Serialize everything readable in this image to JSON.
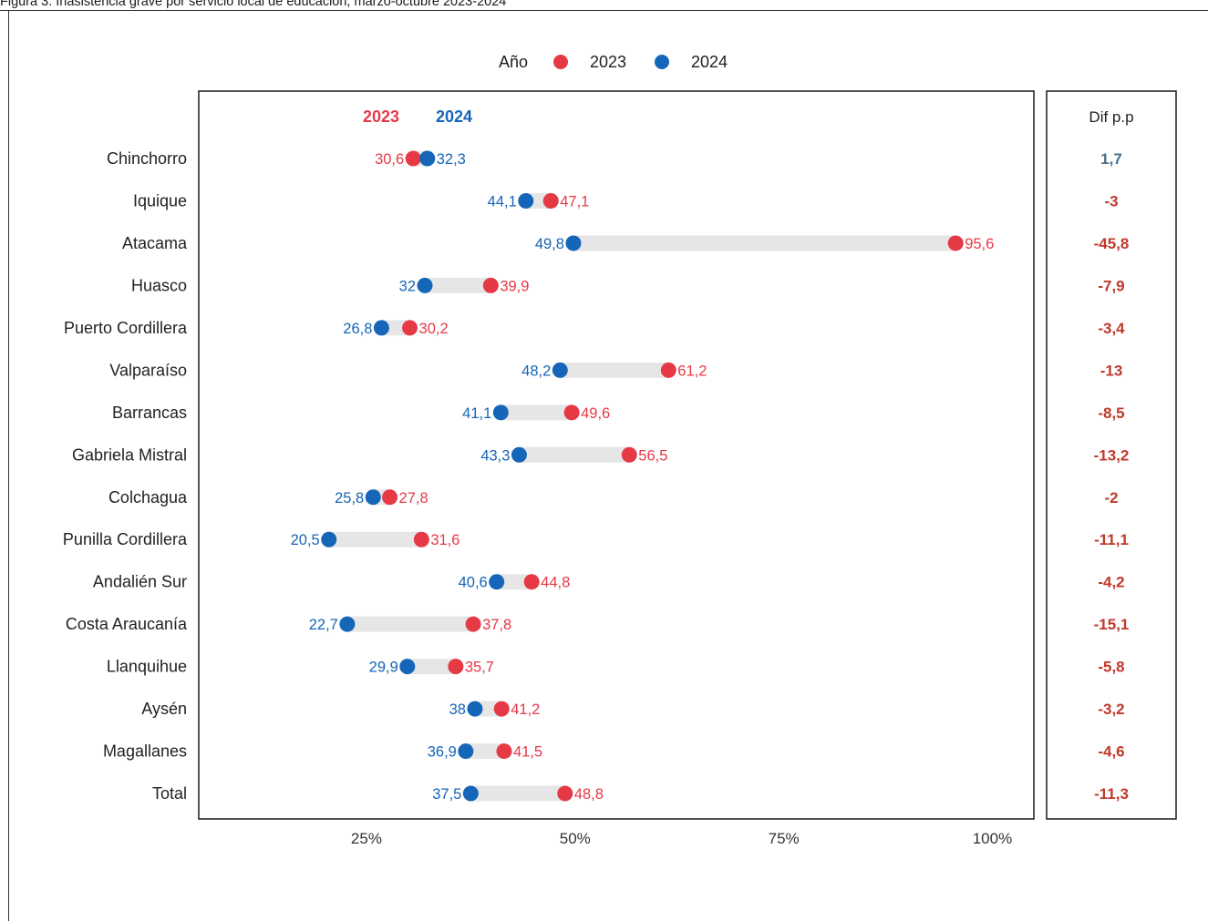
{
  "page": {
    "title": "Figura 3. Inasistencia grave por servicio local de educación, marzo-octubre 2023-2024"
  },
  "legend": {
    "title": "Año",
    "items": [
      {
        "label": "2023",
        "color": "#e63946"
      },
      {
        "label": "2024",
        "color": "#1565b8"
      }
    ]
  },
  "header_labels": {
    "y2023": "2023",
    "y2024": "2024"
  },
  "diff_panel": {
    "header": "Dif p.p",
    "positive_color": "#4a6f8a",
    "negative_color": "#c0392b"
  },
  "colors": {
    "c2023": "#e63946",
    "c2024": "#1565b8",
    "bar": "#e6e6e6"
  },
  "chart_data": {
    "type": "dumbbell",
    "categories": [
      "Chinchorro",
      "Iquique",
      "Atacama",
      "Huasco",
      "Puerto Cordillera",
      "Valparaíso",
      "Barrancas",
      "Gabriela Mistral",
      "Colchagua",
      "Punilla Cordillera",
      "Andalién Sur",
      "Costa Araucanía",
      "Llanquihue",
      "Aysén",
      "Magallanes",
      "Total"
    ],
    "series": [
      {
        "name": "2023",
        "values": [
          30.6,
          47.1,
          95.6,
          39.9,
          30.2,
          61.2,
          49.6,
          56.5,
          27.8,
          31.6,
          44.8,
          37.8,
          35.7,
          41.2,
          41.5,
          48.8
        ],
        "labels": [
          "30,6",
          "47,1",
          "95,6",
          "39,9",
          "30,2",
          "61,2",
          "49,6",
          "56,5",
          "27,8",
          "31,6",
          "44,8",
          "37,8",
          "35,7",
          "41,2",
          "41,5",
          "48,8"
        ]
      },
      {
        "name": "2024",
        "values": [
          32.3,
          44.1,
          49.8,
          32,
          26.8,
          48.2,
          41.1,
          43.3,
          25.8,
          20.5,
          40.6,
          22.7,
          29.9,
          38,
          36.9,
          37.5
        ],
        "labels": [
          "32,3",
          "44,1",
          "49,8",
          "32",
          "26,8",
          "48,2",
          "41,1",
          "43,3",
          "25,8",
          "20,5",
          "40,6",
          "22,7",
          "29,9",
          "38",
          "36,9",
          "37,5"
        ]
      }
    ],
    "diff": [
      "1,7",
      "-3",
      "-45,8",
      "-7,9",
      "-3,4",
      "-13",
      "-8,5",
      "-13,2",
      "-2",
      "-11,1",
      "-4,2",
      "-15,1",
      "-5,8",
      "-3,2",
      "-4,6",
      "-11,3"
    ],
    "x_ticks": [
      25,
      50,
      75,
      100
    ],
    "x_tick_labels": [
      "25%",
      "50%",
      "75%",
      "100%"
    ],
    "xlim": [
      6,
      106
    ]
  }
}
